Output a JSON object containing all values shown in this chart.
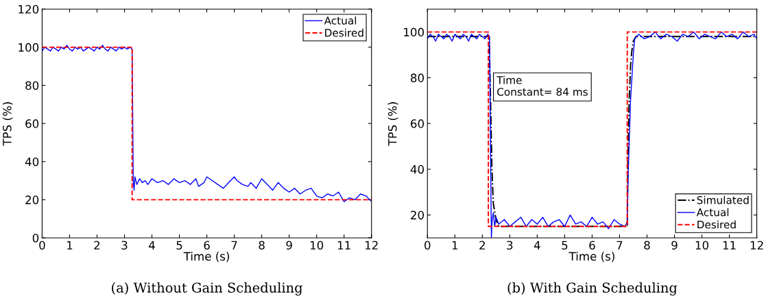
{
  "chart_data": [
    {
      "type": "line",
      "title": "(a) Without Gain Scheduling",
      "xlabel": "Time (s)",
      "ylabel": "TPS (%)",
      "xlim": [
        0,
        12
      ],
      "ylim": [
        0,
        120
      ],
      "xticks": [
        0,
        1,
        2,
        3,
        4,
        5,
        6,
        7,
        8,
        9,
        10,
        11,
        12
      ],
      "yticks": [
        0,
        20,
        40,
        60,
        80,
        100,
        120
      ],
      "legend": "top right",
      "grid": false,
      "series": [
        {
          "name": "Actual",
          "color": "#0000ff",
          "line_style": "solid",
          "x": [
            0,
            0.1,
            0.2,
            0.3,
            0.4,
            0.5,
            0.6,
            0.7,
            0.8,
            0.9,
            1.0,
            1.1,
            1.2,
            1.3,
            1.4,
            1.5,
            1.6,
            1.7,
            1.8,
            1.9,
            2.0,
            2.1,
            2.2,
            2.3,
            2.4,
            2.5,
            2.6,
            2.7,
            2.8,
            2.9,
            3.0,
            3.1,
            3.2,
            3.28,
            3.32,
            3.35,
            3.38,
            3.45,
            3.55,
            3.65,
            3.75,
            3.85,
            4.0,
            4.2,
            4.4,
            4.6,
            4.8,
            5.0,
            5.2,
            5.4,
            5.6,
            5.7,
            5.9,
            6.0,
            6.2,
            6.4,
            6.6,
            6.8,
            7.0,
            7.1,
            7.3,
            7.5,
            7.6,
            7.8,
            8.0,
            8.2,
            8.4,
            8.6,
            8.8,
            9.0,
            9.2,
            9.4,
            9.6,
            9.8,
            10.0,
            10.2,
            10.4,
            10.6,
            10.8,
            11.0,
            11.2,
            11.4,
            11.6,
            11.8,
            12.0
          ],
          "values": [
            98,
            100,
            99,
            98,
            100,
            99,
            98,
            100,
            99,
            101,
            99,
            98,
            100,
            99,
            100,
            98,
            99,
            100,
            99,
            98,
            100,
            99,
            101,
            99,
            98,
            100,
            99,
            98,
            100,
            99,
            100,
            99,
            100,
            99,
            30,
            25,
            32,
            28,
            31,
            29,
            30,
            28,
            31,
            29,
            30,
            28,
            31,
            29,
            30,
            28,
            31,
            27,
            29,
            32,
            30,
            28,
            26,
            29,
            32,
            30,
            28,
            27,
            29,
            26,
            31,
            28,
            25,
            29,
            26,
            24,
            26,
            23,
            25,
            26,
            22,
            21,
            23,
            22,
            24,
            19,
            21,
            20,
            23,
            22,
            19
          ]
        },
        {
          "name": "Desired",
          "color": "#ff0000",
          "line_style": "dashed",
          "x": [
            0,
            3.28,
            3.28,
            12
          ],
          "values": [
            100,
            100,
            20,
            20
          ]
        }
      ]
    },
    {
      "type": "line",
      "title": "(b) With Gain Scheduling",
      "xlabel": "Time (s)",
      "ylabel": "TPS (%)",
      "xlim": [
        0,
        12
      ],
      "ylim": [
        10,
        110
      ],
      "xticks": [
        0,
        1,
        2,
        3,
        4,
        5,
        6,
        7,
        8,
        9,
        10,
        11,
        12
      ],
      "yticks": [
        20,
        40,
        60,
        80,
        100
      ],
      "legend": "bottom right",
      "grid": false,
      "annotations": [
        "Time\nConstant= 84 ms"
      ],
      "series": [
        {
          "name": "Simulated",
          "color": "#000000",
          "line_style": "dashdot",
          "x": [
            0,
            2.25,
            2.3,
            2.35,
            2.4,
            2.5,
            2.6,
            7.28,
            7.3,
            7.35,
            7.4,
            7.45,
            7.5,
            7.6,
            12
          ],
          "values": [
            98,
            98,
            70,
            40,
            25,
            18,
            15,
            15,
            40,
            70,
            85,
            92,
            96,
            98,
            98
          ]
        },
        {
          "name": "Actual",
          "color": "#0000ff",
          "line_style": "solid",
          "x": [
            0,
            0.1,
            0.2,
            0.3,
            0.4,
            0.5,
            0.6,
            0.7,
            0.8,
            0.9,
            1.0,
            1.1,
            1.2,
            1.3,
            1.4,
            1.5,
            1.6,
            1.7,
            1.8,
            1.9,
            2.0,
            2.1,
            2.2,
            2.26,
            2.33,
            2.36,
            2.4,
            2.45,
            2.5,
            2.6,
            2.8,
            3.0,
            3.2,
            3.4,
            3.6,
            3.8,
            4.0,
            4.2,
            4.4,
            4.6,
            4.8,
            5.0,
            5.2,
            5.4,
            5.6,
            5.8,
            6.0,
            6.2,
            6.4,
            6.6,
            6.8,
            7.0,
            7.2,
            7.28,
            7.32,
            7.4,
            7.5,
            7.55,
            7.7,
            7.9,
            8.1,
            8.3,
            8.5,
            8.7,
            8.9,
            9.1,
            9.3,
            9.5,
            9.7,
            9.9,
            10.1,
            10.3,
            10.5,
            10.7,
            10.9,
            11.1,
            11.3,
            11.5,
            11.7,
            11.9,
            12.0
          ],
          "values": [
            97,
            99,
            98,
            96,
            99,
            98,
            97,
            99,
            98,
            96,
            99,
            98,
            97,
            99,
            98,
            96,
            99,
            98,
            97,
            99,
            98,
            97,
            99,
            98,
            10,
            18,
            21,
            15,
            19,
            16,
            18,
            15,
            17,
            19,
            15,
            18,
            16,
            19,
            15,
            17,
            18,
            15,
            20,
            16,
            17,
            15,
            19,
            16,
            17,
            14,
            18,
            16,
            15,
            17,
            40,
            70,
            90,
            97,
            99,
            97,
            98,
            100,
            97,
            99,
            98,
            96,
            99,
            98,
            100,
            97,
            99,
            98,
            97,
            100,
            98,
            99,
            97,
            100,
            98,
            99,
            97
          ]
        },
        {
          "name": "Desired",
          "color": "#ff0000",
          "line_style": "dashed",
          "x": [
            0,
            2.22,
            2.22,
            7.28,
            7.28,
            12
          ],
          "values": [
            100,
            100,
            15,
            15,
            100,
            100
          ]
        }
      ]
    }
  ]
}
